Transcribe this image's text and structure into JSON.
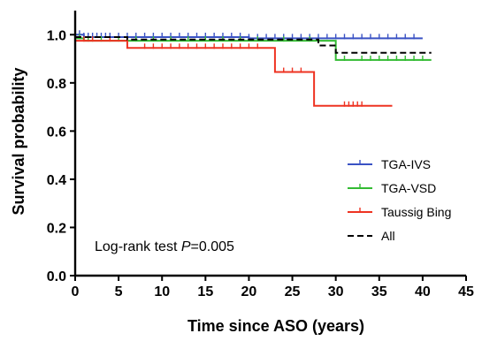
{
  "chart_data": {
    "type": "line",
    "xlabel": "Time since ASO (years)",
    "ylabel": "Survival probability",
    "xlim": [
      0,
      45
    ],
    "ylim": [
      0,
      1.1
    ],
    "xticks": [
      "0",
      "5",
      "10",
      "15",
      "20",
      "25",
      "30",
      "35",
      "40",
      "45"
    ],
    "yticks": [
      "0.0",
      "0.2",
      "0.4",
      "0.6",
      "0.8",
      "1.0"
    ],
    "legend_position": "right",
    "annotation": {
      "prefix": "Log-rank test ",
      "italic": "P",
      "suffix": "=0.005"
    },
    "series": [
      {
        "name": "TGA-IVS",
        "color": "#3a52c4",
        "dash": "solid",
        "steps": [
          [
            0,
            1.0
          ],
          [
            1,
            0.99
          ],
          [
            20,
            0.985
          ],
          [
            40,
            0.985
          ]
        ],
        "censor": [
          0.5,
          1,
          1.5,
          2,
          2.5,
          3,
          3.5,
          4,
          5,
          6,
          7,
          8,
          9,
          10,
          11,
          12,
          13,
          14,
          15,
          16,
          17,
          18,
          19,
          20,
          21,
          22,
          23,
          24,
          25,
          26,
          27,
          28,
          29,
          30,
          31,
          32,
          33,
          34,
          35,
          36,
          37,
          38,
          39
        ]
      },
      {
        "name": "TGA-VSD",
        "color": "#33bb33",
        "dash": "solid",
        "steps": [
          [
            0,
            0.985
          ],
          [
            1,
            0.975
          ],
          [
            30,
            0.895
          ],
          [
            41,
            0.895
          ]
        ],
        "censor": [
          0.5,
          1.5,
          2,
          3,
          5,
          7,
          9,
          11,
          13,
          15,
          17,
          19,
          21,
          24,
          27,
          31,
          33,
          34,
          35,
          36,
          37,
          38,
          39,
          40
        ]
      },
      {
        "name": "Taussig Bing",
        "color": "#ee3322",
        "dash": "solid",
        "steps": [
          [
            0,
            0.975
          ],
          [
            6,
            0.945
          ],
          [
            23,
            0.845
          ],
          [
            27.5,
            0.705
          ],
          [
            36.5,
            0.705
          ]
        ],
        "censor": [
          1,
          2,
          4,
          8,
          9,
          10,
          11,
          12,
          13,
          14,
          15,
          16,
          17,
          18,
          19,
          20,
          21,
          24,
          25,
          26,
          31,
          31.5,
          32,
          32.5,
          33
        ]
      },
      {
        "name": "All",
        "color": "#000000",
        "dash": "dashed",
        "steps": [
          [
            0,
            0.99
          ],
          [
            6,
            0.98
          ],
          [
            28,
            0.955
          ],
          [
            30,
            0.925
          ],
          [
            41,
            0.925
          ]
        ],
        "censor": []
      }
    ]
  }
}
